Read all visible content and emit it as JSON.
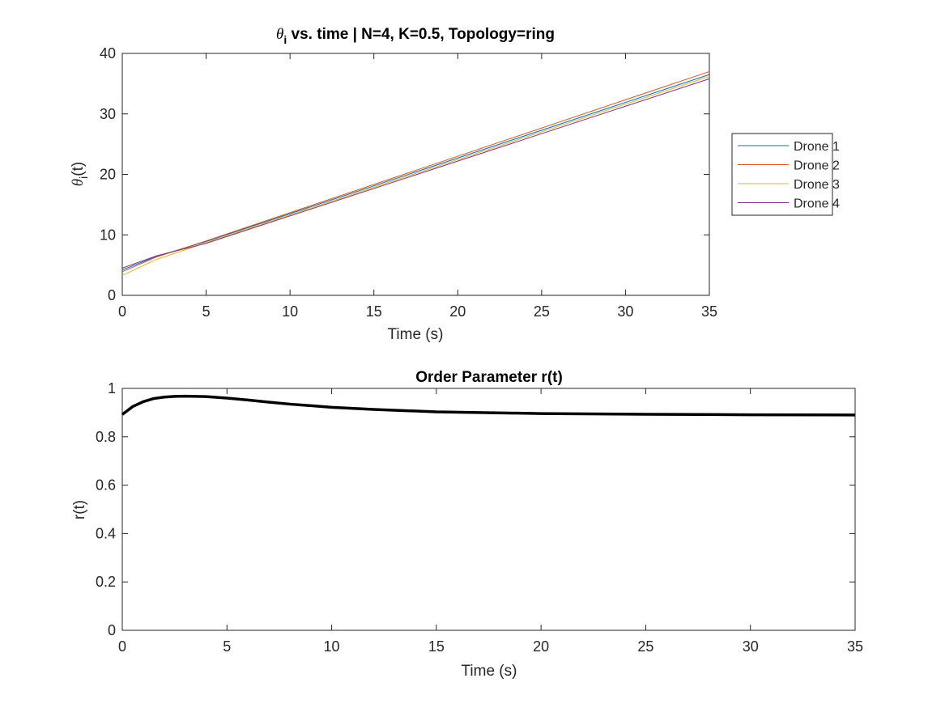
{
  "chart_data": [
    {
      "type": "line",
      "title": "θi vs. time | N=4, K=0.5, Topology=ring",
      "title_math": "θ",
      "title_math_sub": "i",
      "title_rest": " vs. time | N=4, K=0.5, Topology=ring",
      "xlabel": "Time (s)",
      "ylabel": "θi(t)",
      "ylabel_math": "θ",
      "ylabel_sub": "i",
      "ylabel_rest": "(t)",
      "xlim": [
        0,
        35
      ],
      "ylim": [
        0,
        40
      ],
      "xticks": [
        0,
        5,
        10,
        15,
        20,
        25,
        30,
        35
      ],
      "yticks": [
        0,
        10,
        20,
        30,
        40
      ],
      "grid": false,
      "legend_position": "outside-right",
      "series": [
        {
          "name": "Drone 1",
          "color": "#0072BD",
          "x": [
            0,
            2,
            5,
            35
          ],
          "y": [
            4.2,
            6.4,
            8.9,
            36.5
          ]
        },
        {
          "name": "Drone 2",
          "color": "#D95319",
          "x": [
            0,
            2,
            5,
            35
          ],
          "y": [
            3.9,
            6.3,
            9.0,
            37.0
          ]
        },
        {
          "name": "Drone 3",
          "color": "#EDB120",
          "x": [
            0,
            2,
            5,
            35
          ],
          "y": [
            3.3,
            5.9,
            8.7,
            36.2
          ]
        },
        {
          "name": "Drone 4",
          "color": "#7E2F8E",
          "x": [
            0,
            2,
            5,
            35
          ],
          "y": [
            4.5,
            6.5,
            8.6,
            35.8
          ]
        }
      ]
    },
    {
      "type": "line",
      "title": "Order Parameter r(t)",
      "xlabel": "Time (s)",
      "ylabel": "r(t)",
      "xlim": [
        0,
        35
      ],
      "ylim": [
        0,
        1
      ],
      "xticks": [
        0,
        5,
        10,
        15,
        20,
        25,
        30,
        35
      ],
      "yticks": [
        0,
        0.2,
        0.4,
        0.6,
        0.8,
        1
      ],
      "grid": false,
      "series": [
        {
          "color": "#000000",
          "x": [
            0,
            0.5,
            1,
            1.5,
            2,
            2.5,
            3,
            4,
            5,
            6,
            7,
            8,
            10,
            12,
            15,
            20,
            25,
            30,
            35
          ],
          "y": [
            0.892,
            0.925,
            0.945,
            0.958,
            0.964,
            0.967,
            0.968,
            0.966,
            0.96,
            0.952,
            0.943,
            0.935,
            0.922,
            0.913,
            0.903,
            0.896,
            0.893,
            0.891,
            0.89
          ]
        }
      ]
    }
  ]
}
